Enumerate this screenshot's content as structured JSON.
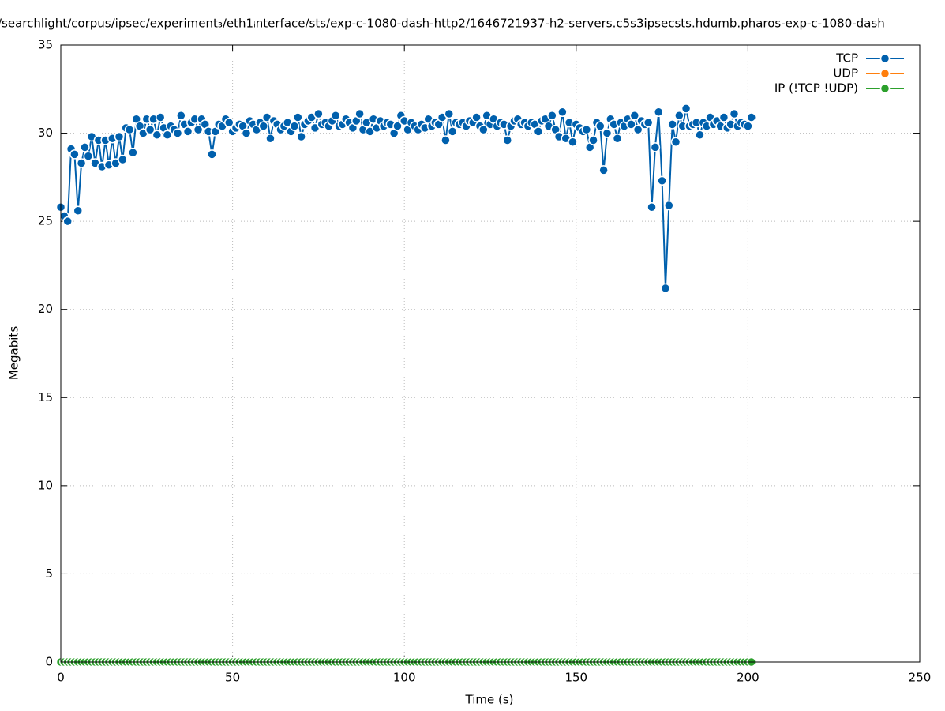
{
  "chart_data": {
    "type": "line",
    "title": "/searchlight/corpus/ipsec/experiment₃/eth1ᵢnterface/sts/exp-c-1080-dash-http2/1646721937-h2-servers.c5s3ipsecsts.hdumb.pharos-exp-c-1080-dash",
    "xlabel": "Time (s)",
    "ylabel": "Megabits",
    "xlim": [
      0,
      250
    ],
    "xticks": [
      0,
      50,
      100,
      150,
      200,
      250
    ],
    "ylim": [
      0,
      35
    ],
    "yticks": [
      0,
      5,
      10,
      15,
      20,
      25,
      30,
      35
    ],
    "grid": true,
    "legend": "top-right",
    "x": [
      0,
      1,
      2,
      3,
      4,
      5,
      6,
      7,
      8,
      9,
      10,
      11,
      12,
      13,
      14,
      15,
      16,
      17,
      18,
      19,
      20,
      21,
      22,
      23,
      24,
      25,
      26,
      27,
      28,
      29,
      30,
      31,
      32,
      33,
      34,
      35,
      36,
      37,
      38,
      39,
      40,
      41,
      42,
      43,
      44,
      45,
      46,
      47,
      48,
      49,
      50,
      51,
      52,
      53,
      54,
      55,
      56,
      57,
      58,
      59,
      60,
      61,
      62,
      63,
      64,
      65,
      66,
      67,
      68,
      69,
      70,
      71,
      72,
      73,
      74,
      75,
      76,
      77,
      78,
      79,
      80,
      81,
      82,
      83,
      84,
      85,
      86,
      87,
      88,
      89,
      90,
      91,
      92,
      93,
      94,
      95,
      96,
      97,
      98,
      99,
      100,
      101,
      102,
      103,
      104,
      105,
      106,
      107,
      108,
      109,
      110,
      111,
      112,
      113,
      114,
      115,
      116,
      117,
      118,
      119,
      120,
      121,
      122,
      123,
      124,
      125,
      126,
      127,
      128,
      129,
      130,
      131,
      132,
      133,
      134,
      135,
      136,
      137,
      138,
      139,
      140,
      141,
      142,
      143,
      144,
      145,
      146,
      147,
      148,
      149,
      150,
      151,
      152,
      153,
      154,
      155,
      156,
      157,
      158,
      159,
      160,
      161,
      162,
      163,
      164,
      165,
      166,
      167,
      168,
      169,
      170,
      171,
      172,
      173,
      174,
      175,
      176,
      177,
      178,
      179,
      180,
      181,
      182,
      183,
      184,
      185,
      186,
      187,
      188,
      189,
      190,
      191,
      192,
      193,
      194,
      195,
      196,
      197,
      198,
      199,
      200,
      201
    ],
    "series": [
      {
        "name": "TCP",
        "color": "#0060ad",
        "values": [
          25.8,
          25.3,
          25.0,
          29.1,
          28.8,
          25.6,
          28.3,
          29.2,
          28.7,
          29.8,
          28.3,
          29.6,
          28.1,
          29.6,
          28.2,
          29.7,
          28.3,
          29.8,
          28.5,
          30.3,
          30.2,
          28.9,
          30.8,
          30.4,
          30.0,
          30.8,
          30.2,
          30.8,
          29.9,
          30.9,
          30.3,
          29.9,
          30.4,
          30.2,
          30.0,
          31.0,
          30.5,
          30.1,
          30.6,
          30.8,
          30.2,
          30.8,
          30.5,
          30.1,
          28.8,
          30.1,
          30.5,
          30.4,
          30.8,
          30.6,
          30.1,
          30.3,
          30.5,
          30.4,
          30.0,
          30.7,
          30.5,
          30.2,
          30.6,
          30.4,
          30.9,
          29.7,
          30.7,
          30.5,
          30.2,
          30.4,
          30.6,
          30.1,
          30.4,
          30.9,
          29.8,
          30.5,
          30.7,
          30.9,
          30.3,
          31.1,
          30.5,
          30.6,
          30.4,
          30.7,
          31.0,
          30.4,
          30.5,
          30.8,
          30.6,
          30.3,
          30.7,
          31.1,
          30.2,
          30.6,
          30.1,
          30.8,
          30.3,
          30.7,
          30.4,
          30.6,
          30.5,
          30.0,
          30.4,
          31.0,
          30.7,
          30.2,
          30.6,
          30.4,
          30.2,
          30.5,
          30.3,
          30.8,
          30.4,
          30.6,
          30.5,
          30.9,
          29.6,
          31.1,
          30.1,
          30.6,
          30.5,
          30.6,
          30.4,
          30.7,
          30.6,
          30.9,
          30.4,
          30.2,
          31.0,
          30.5,
          30.8,
          30.4,
          30.6,
          30.5,
          29.6,
          30.4,
          30.7,
          30.8,
          30.5,
          30.6,
          30.4,
          30.6,
          30.5,
          30.1,
          30.7,
          30.8,
          30.4,
          31.0,
          30.2,
          29.8,
          31.2,
          29.7,
          30.6,
          29.5,
          30.5,
          30.3,
          30.1,
          30.2,
          29.2,
          29.6,
          30.6,
          30.4,
          27.9,
          30.0,
          30.8,
          30.5,
          29.7,
          30.6,
          30.4,
          30.8,
          30.5,
          31.0,
          30.2,
          30.7,
          30.5,
          30.6,
          25.8,
          29.2,
          31.2,
          27.3,
          21.2,
          25.9,
          30.5,
          29.5,
          31.0,
          30.4,
          31.4,
          30.4,
          30.5,
          30.6,
          29.9,
          30.6,
          30.4,
          30.9,
          30.5,
          30.7,
          30.4,
          30.9,
          30.3,
          30.5,
          31.1,
          30.4,
          30.6,
          30.5,
          30.4,
          30.9
        ]
      },
      {
        "name": "UDP",
        "color": "#ff7f0e",
        "values": [
          0,
          0,
          0,
          0,
          0,
          0,
          0,
          0,
          0,
          0,
          0,
          0,
          0,
          0,
          0,
          0,
          0,
          0,
          0,
          0,
          0,
          0,
          0,
          0,
          0,
          0,
          0,
          0,
          0,
          0,
          0,
          0,
          0,
          0,
          0,
          0,
          0,
          0,
          0,
          0,
          0,
          0,
          0,
          0,
          0,
          0,
          0,
          0,
          0,
          0,
          0,
          0,
          0,
          0,
          0,
          0,
          0,
          0,
          0,
          0,
          0,
          0,
          0,
          0,
          0,
          0,
          0,
          0,
          0,
          0,
          0,
          0,
          0,
          0,
          0,
          0,
          0,
          0,
          0,
          0,
          0,
          0,
          0,
          0,
          0,
          0,
          0,
          0,
          0,
          0,
          0,
          0,
          0,
          0,
          0,
          0,
          0,
          0,
          0,
          0,
          0,
          0,
          0,
          0,
          0,
          0,
          0,
          0,
          0,
          0,
          0,
          0,
          0,
          0,
          0,
          0,
          0,
          0,
          0,
          0,
          0,
          0,
          0,
          0,
          0,
          0,
          0,
          0,
          0,
          0,
          0,
          0,
          0,
          0,
          0,
          0,
          0,
          0,
          0,
          0,
          0,
          0,
          0,
          0,
          0,
          0,
          0,
          0,
          0,
          0,
          0,
          0,
          0,
          0,
          0,
          0,
          0,
          0,
          0,
          0,
          0,
          0,
          0,
          0,
          0,
          0,
          0,
          0,
          0,
          0,
          0,
          0,
          0,
          0,
          0,
          0,
          0,
          0,
          0,
          0,
          0,
          0,
          0,
          0,
          0,
          0,
          0,
          0,
          0,
          0,
          0,
          0,
          0,
          0,
          0,
          0,
          0,
          0,
          0,
          0,
          0,
          0
        ]
      },
      {
        "name": "IP (!TCP  !UDP)",
        "color": "#2ca02c",
        "values": [
          0,
          0,
          0,
          0,
          0,
          0,
          0,
          0,
          0,
          0,
          0,
          0,
          0,
          0,
          0,
          0,
          0,
          0,
          0,
          0,
          0,
          0,
          0,
          0,
          0,
          0,
          0,
          0,
          0,
          0,
          0,
          0,
          0,
          0,
          0,
          0,
          0,
          0,
          0,
          0,
          0,
          0,
          0,
          0,
          0,
          0,
          0,
          0,
          0,
          0,
          0,
          0,
          0,
          0,
          0,
          0,
          0,
          0,
          0,
          0,
          0,
          0,
          0,
          0,
          0,
          0,
          0,
          0,
          0,
          0,
          0,
          0,
          0,
          0,
          0,
          0,
          0,
          0,
          0,
          0,
          0,
          0,
          0,
          0,
          0,
          0,
          0,
          0,
          0,
          0,
          0,
          0,
          0,
          0,
          0,
          0,
          0,
          0,
          0,
          0,
          0,
          0,
          0,
          0,
          0,
          0,
          0,
          0,
          0,
          0,
          0,
          0,
          0,
          0,
          0,
          0,
          0,
          0,
          0,
          0,
          0,
          0,
          0,
          0,
          0,
          0,
          0,
          0,
          0,
          0,
          0,
          0,
          0,
          0,
          0,
          0,
          0,
          0,
          0,
          0,
          0,
          0,
          0,
          0,
          0,
          0,
          0,
          0,
          0,
          0,
          0,
          0,
          0,
          0,
          0,
          0,
          0,
          0,
          0,
          0,
          0,
          0,
          0,
          0,
          0,
          0,
          0,
          0,
          0,
          0,
          0,
          0,
          0,
          0,
          0,
          0,
          0,
          0,
          0,
          0,
          0,
          0,
          0,
          0,
          0,
          0,
          0,
          0,
          0,
          0,
          0,
          0,
          0,
          0,
          0,
          0,
          0,
          0,
          0,
          0,
          0,
          0
        ]
      }
    ]
  }
}
